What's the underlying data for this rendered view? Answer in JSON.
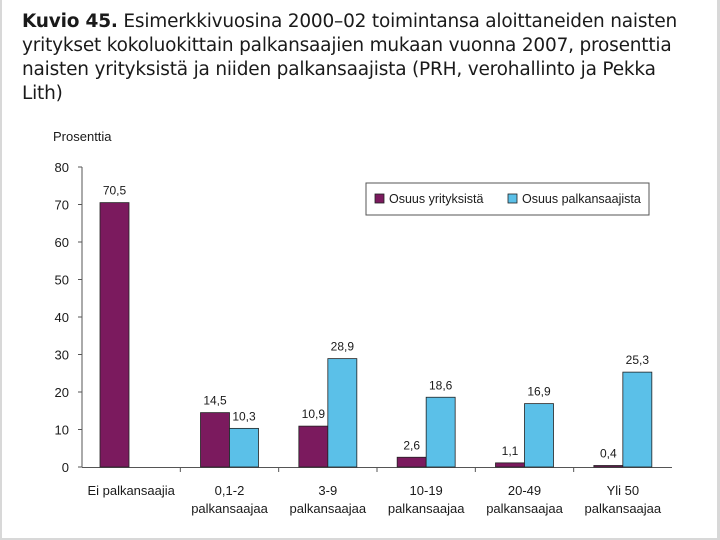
{
  "caption": {
    "label": "Kuvio 45.",
    "text": "Esimerkkivuosina 2000–02 toimintansa aloittaneiden naisten yritykset kokoluokittain palkansaajien mukaan vuonna 2007, prosenttia naisten yrityksistä ja niiden palkansaajista (PRH, verohallinto ja Pekka Lith)"
  },
  "chart_data": {
    "type": "bar",
    "title": "Kuvio 45. Esimerkkivuosina 2000–02 toimintansa aloittaneiden naisten yritykset kokoluokittain palkansaajien mukaan vuonna 2007, prosenttia naisten yrityksistä ja niiden palkansaajista (PRH, verohallinto ja Pekka Lith)",
    "ylabel": "Prosenttia",
    "xlabel": "",
    "ylim": [
      0,
      80
    ],
    "yticks": [
      0,
      10,
      20,
      30,
      40,
      50,
      60,
      70,
      80
    ],
    "grid": false,
    "legend_position": "top-right",
    "categories": [
      [
        "Ei palkansaajia"
      ],
      [
        "0,1-2",
        "palkansaajaa"
      ],
      [
        "3-9",
        "palkansaajaa"
      ],
      [
        "10-19",
        "palkansaajaa"
      ],
      [
        "20-49",
        "palkansaajaa"
      ],
      [
        "Yli 50",
        "palkansaajaa"
      ]
    ],
    "series": [
      {
        "name": "Osuus yrityksistä",
        "color": "#7b1a5e",
        "values": [
          70.5,
          14.5,
          10.9,
          2.6,
          1.1,
          0.4
        ],
        "labels": [
          "70,5",
          "14,5",
          "10,9",
          "2,6",
          "1,1",
          "0,4"
        ]
      },
      {
        "name": "Osuus palkansaajista",
        "color": "#5bc0e8",
        "values": [
          null,
          10.3,
          28.9,
          18.6,
          16.9,
          25.3
        ],
        "labels": [
          null,
          "10,3",
          "28,9",
          "18,6",
          "16,9",
          "25,3"
        ]
      }
    ]
  }
}
